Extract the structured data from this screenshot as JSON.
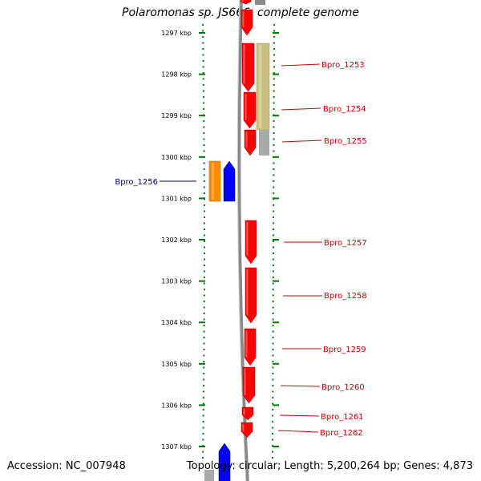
{
  "title": "Polaromonas sp. JS666, complete genome",
  "accession": "Accession: NC_007948",
  "topology": "Topology: circular; Length: 5,200,264 bp; Genes: 4,873",
  "colors": {
    "tick": "#007a00",
    "forward_gene": "#ff0000",
    "reverse_gene": "#0000ff",
    "orange_feature": "#ff8c00",
    "tan_feature": "#c8c080",
    "gray_feature": "#aaaaaa",
    "backbone": "#888888",
    "label_forward": "#cc0000",
    "label_reverse": "#000099"
  },
  "kbp_ticks": [
    {
      "label": "1297 kbp",
      "kbp": 1297
    },
    {
      "label": "1298 kbp",
      "kbp": 1298
    },
    {
      "label": "1299 kbp",
      "kbp": 1299
    },
    {
      "label": "1300 kbp",
      "kbp": 1300
    },
    {
      "label": "1301 kbp",
      "kbp": 1301
    },
    {
      "label": "1302 kbp",
      "kbp": 1302
    },
    {
      "label": "1303 kbp",
      "kbp": 1303
    },
    {
      "label": "1304 kbp",
      "kbp": 1304
    },
    {
      "label": "1305 kbp",
      "kbp": 1305
    },
    {
      "label": "1306 kbp",
      "kbp": 1306
    },
    {
      "label": "1307 kbp",
      "kbp": 1307
    }
  ],
  "gene_labels": [
    {
      "name": "Bpro_1253",
      "side": "right"
    },
    {
      "name": "Bpro_1254",
      "side": "right"
    },
    {
      "name": "Bpro_1255",
      "side": "right"
    },
    {
      "name": "Bpro_1256",
      "side": "left"
    },
    {
      "name": "Bpro_1257",
      "side": "right"
    },
    {
      "name": "Bpro_1258",
      "side": "right"
    },
    {
      "name": "Bpro_1259",
      "side": "right"
    },
    {
      "name": "Bpro_1260",
      "side": "right"
    },
    {
      "name": "Bpro_1261",
      "side": "right"
    },
    {
      "name": "Bpro_1262",
      "side": "right"
    }
  ]
}
